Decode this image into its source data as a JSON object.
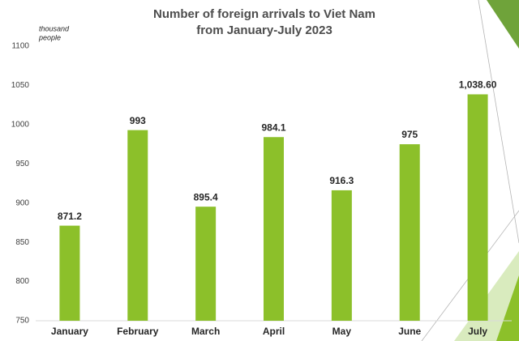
{
  "chart_data": {
    "type": "bar",
    "title": [
      "Number of foreign arrivals to Viet Nam",
      "from January-July 2023"
    ],
    "y_label": [
      "thousand",
      "people"
    ],
    "categories": [
      "January",
      "February",
      "March",
      "April",
      "May",
      "June",
      "July"
    ],
    "values": [
      871.2,
      993,
      895.4,
      984.1,
      916.3,
      975,
      1038.6
    ],
    "value_labels": [
      "871.2",
      "993",
      "895.4",
      "984.1",
      "916.3",
      "975",
      "1,038.60"
    ],
    "color": "#8cc02a",
    "ylim": [
      750,
      1100
    ],
    "yticks": [
      750,
      800,
      850,
      900,
      950,
      1000,
      1050,
      1100
    ],
    "grid": false
  }
}
